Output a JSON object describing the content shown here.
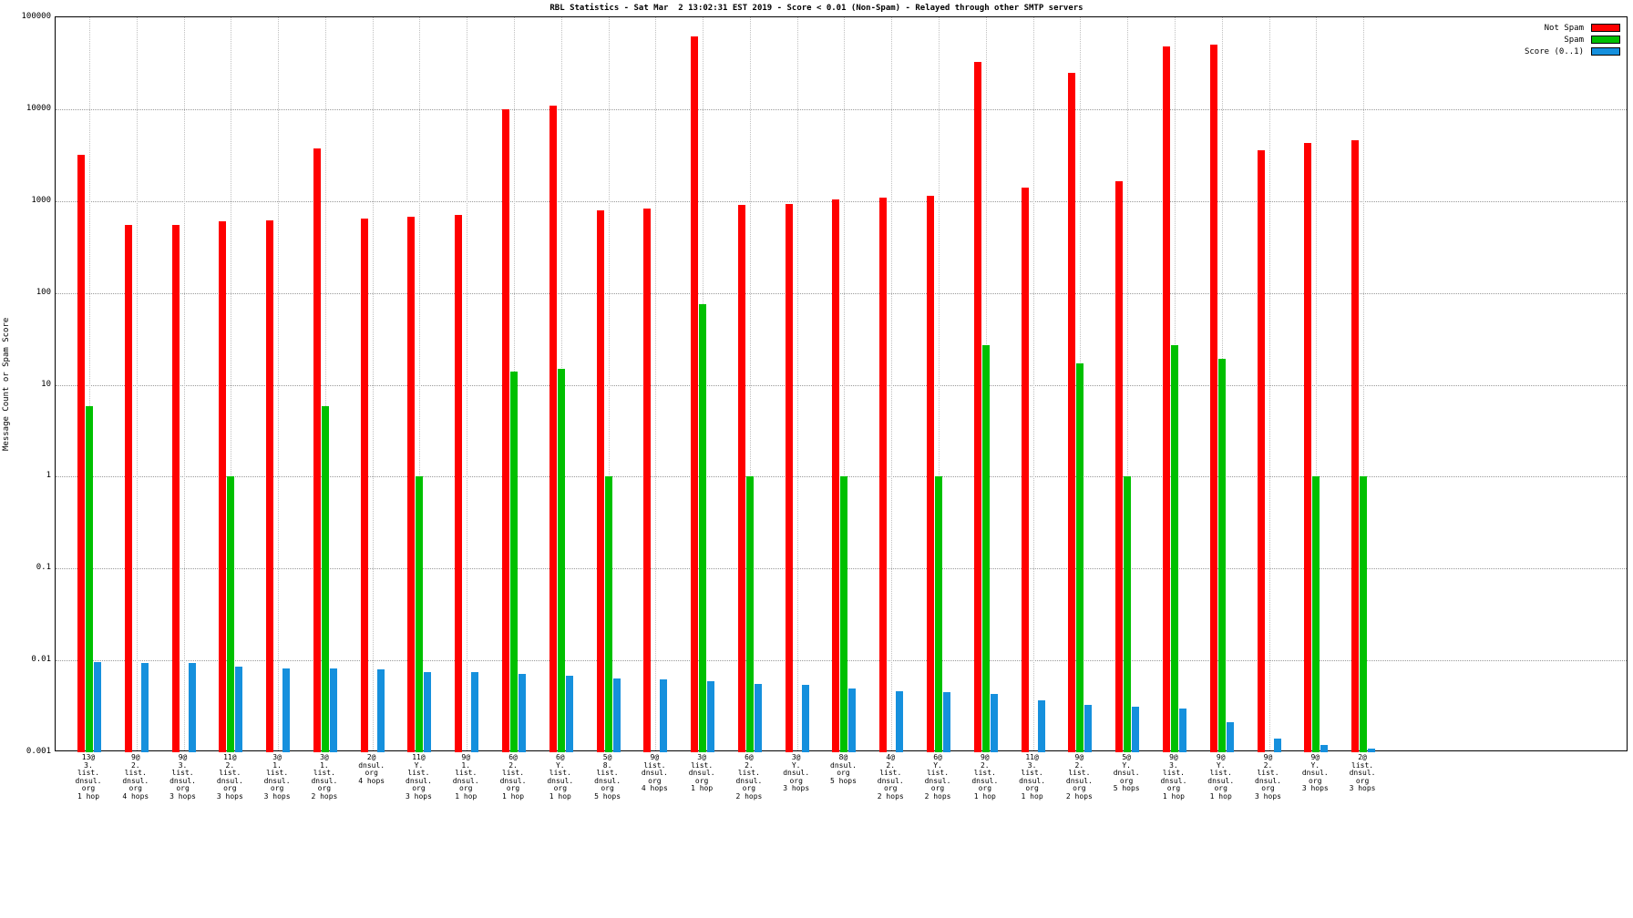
{
  "chart_data": {
    "type": "bar",
    "title": "RBL Statistics - Sat Mar  2 13:02:31 EST 2019 - Score < 0.01 (Non-Spam) - Relayed through other SMTP servers",
    "ylabel": "Message Count or Spam Score",
    "xlabel": "",
    "yscale": "log",
    "ylim": [
      0.001,
      100000
    ],
    "ytick_labels": [
      "100000",
      "10000",
      "1000",
      "100",
      "10",
      "1",
      "0.1",
      "0.01",
      "0.001"
    ],
    "grid": true,
    "legend_position": "top-right",
    "legend": [
      {
        "label": "Not Spam",
        "color": "#ff0000"
      },
      {
        "label": "Spam",
        "color": "#00c000"
      },
      {
        "label": "Score (0..1)",
        "color": "#1590dd"
      }
    ],
    "categories": [
      [
        "13@",
        "3.",
        "list.",
        "dnsul.",
        "org",
        "1 hop"
      ],
      [
        "9@",
        "2.",
        "list.",
        "dnsul.",
        "org",
        "4 hops"
      ],
      [
        "9@",
        "3.",
        "list.",
        "dnsul.",
        "org",
        "3 hops"
      ],
      [
        "11@",
        "2.",
        "list.",
        "dnsul.",
        "org",
        "3 hops"
      ],
      [
        "3@",
        "1.",
        "list.",
        "dnsul.",
        "org",
        "3 hops"
      ],
      [
        "3@",
        "1.",
        "list.",
        "dnsul.",
        "org",
        "2 hops"
      ],
      [
        "2@",
        "dnsul.",
        "org",
        "4 hops"
      ],
      [
        "11@",
        "Y.",
        "list.",
        "dnsul.",
        "org",
        "3 hops"
      ],
      [
        "9@",
        "1.",
        "list.",
        "dnsul.",
        "org",
        "1 hop"
      ],
      [
        "6@",
        "2.",
        "list.",
        "dnsul.",
        "org",
        "1 hop"
      ],
      [
        "6@",
        "Y.",
        "list.",
        "dnsul.",
        "org",
        "1 hop"
      ],
      [
        "5@",
        "8.",
        "list.",
        "dnsul.",
        "org",
        "5 hops"
      ],
      [
        "9@",
        "list.",
        "dnsul.",
        "org",
        "4 hops"
      ],
      [
        "3@",
        "list.",
        "dnsul.",
        "org",
        "1 hop"
      ],
      [
        "6@",
        "2.",
        "list.",
        "dnsul.",
        "org",
        "2 hops"
      ],
      [
        "3@",
        "Y.",
        "dnsul.",
        "org",
        "3 hops"
      ],
      [
        "8@",
        "dnsul.",
        "org",
        "5 hops"
      ],
      [
        "4@",
        "2.",
        "list.",
        "dnsul.",
        "org",
        "2 hops"
      ],
      [
        "6@",
        "Y.",
        "list.",
        "dnsul.",
        "org",
        "2 hops"
      ],
      [
        "9@",
        "2.",
        "list.",
        "dnsul.",
        "org",
        "1 hop"
      ],
      [
        "11@",
        "3.",
        "list.",
        "dnsul.",
        "org",
        "1 hop"
      ],
      [
        "9@",
        "2.",
        "list.",
        "dnsul.",
        "org",
        "2 hops"
      ],
      [
        "5@",
        "Y.",
        "dnsul.",
        "org",
        "5 hops"
      ],
      [
        "9@",
        "3.",
        "list.",
        "dnsul.",
        "org",
        "1 hop"
      ],
      [
        "9@",
        "Y.",
        "list.",
        "dnsul.",
        "org",
        "1 hop"
      ],
      [
        "9@",
        "2.",
        "list.",
        "dnsul.",
        "org",
        "3 hops"
      ],
      [
        "9@",
        "Y.",
        "dnsul.",
        "org",
        "3 hops"
      ],
      [
        "2@",
        "list.",
        "dnsul.",
        "org",
        "3 hops"
      ]
    ],
    "series": [
      {
        "name": "Not Spam",
        "color": "#ff0000",
        "values": [
          3200,
          550,
          550,
          600,
          620,
          3700,
          650,
          680,
          700,
          10000,
          11000,
          800,
          820,
          62000,
          900,
          930,
          1050,
          1100,
          1150,
          33000,
          1400,
          25000,
          1650,
          48000,
          50000,
          3600,
          4300,
          4600
        ]
      },
      {
        "name": "Spam",
        "color": "#00c000",
        "values": [
          5.8,
          0,
          0,
          1,
          0,
          5.8,
          0,
          1,
          0,
          14,
          15,
          1,
          0,
          75,
          1,
          0,
          1,
          0,
          1,
          27,
          0,
          17,
          1,
          27,
          19,
          0,
          1,
          1
        ]
      },
      {
        "name": "Score (0..1)",
        "color": "#1590dd",
        "values": [
          0.0095,
          0.0093,
          0.0093,
          0.0086,
          0.0082,
          0.0081,
          0.0079,
          0.0075,
          0.0074,
          0.0072,
          0.0068,
          0.0064,
          0.0062,
          0.006,
          0.0055,
          0.0054,
          0.0049,
          0.0046,
          0.0045,
          0.0043,
          0.0037,
          0.0033,
          0.0031,
          0.003,
          0.0021,
          0.0014,
          0.0012,
          0.0011
        ]
      }
    ]
  }
}
